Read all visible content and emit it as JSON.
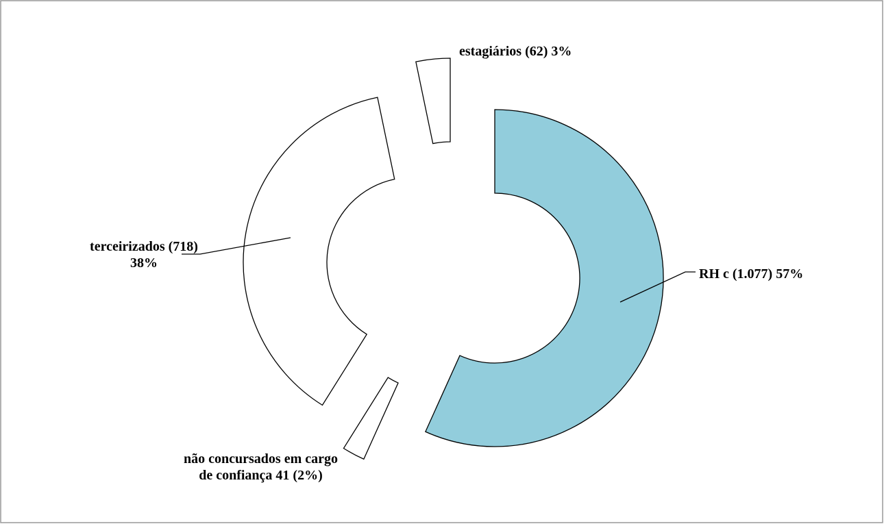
{
  "chart_data": {
    "type": "donut",
    "values": [
      1077,
      41,
      718,
      62
    ],
    "value_labels": [
      "RH c (1.077) 57%",
      "não concursados em cargo de confiança 41 (2%)",
      "terceirizados (718) 38%",
      "estagiários (62) 3%"
    ],
    "colors": [
      "#92cddc",
      "#ffffff",
      "#ffffff",
      "#ffffff"
    ]
  }
}
